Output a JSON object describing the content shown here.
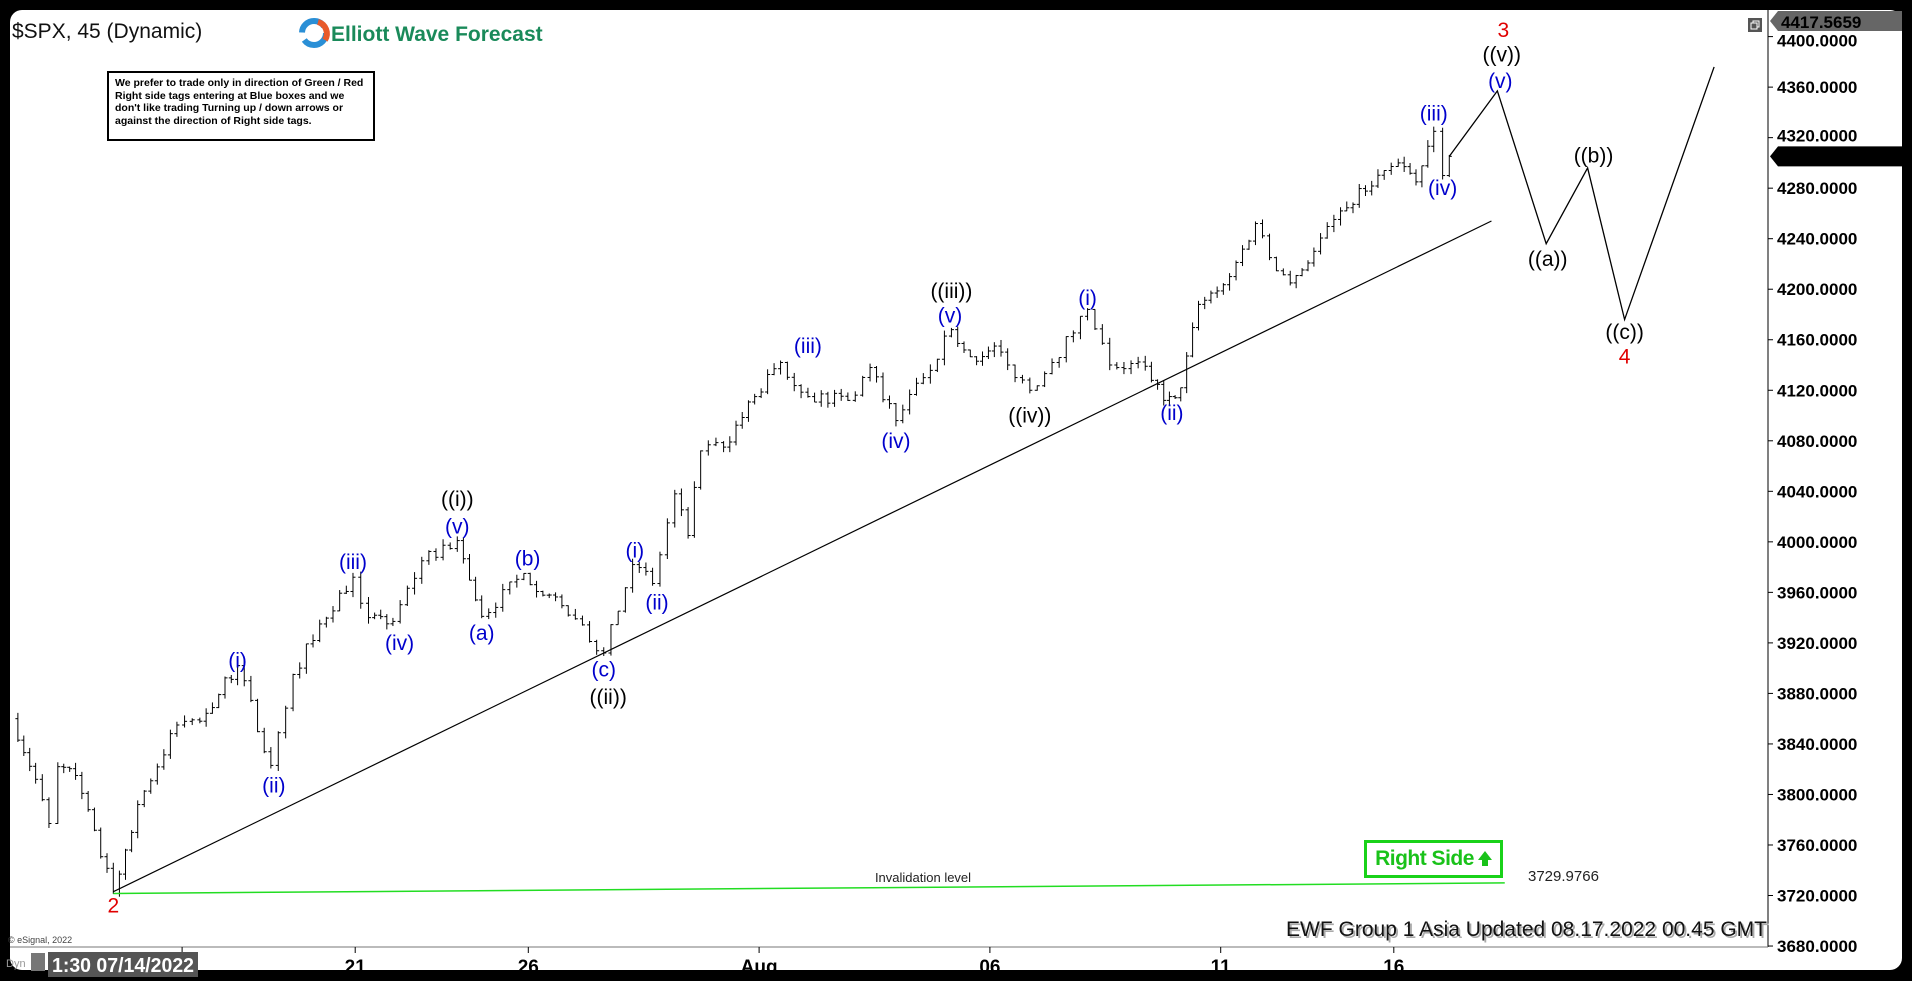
{
  "header": {
    "title": "$SPX, 45 (Dynamic)",
    "logo_text": "Elliott Wave Forecast",
    "note": "We prefer to trade only in direction of Green / Red Right side tags entering at Blue boxes and we don't like trading Turning up / down arrows or against the direction of Right side tags."
  },
  "footer": {
    "updated": "EWF Group 1 Asia Updated 08.17.2022 00.45 GMT",
    "copyright": "© eSignal, 2022",
    "dyn": "Dyn",
    "cursor_date": "1:30 07/14/2022"
  },
  "right_side_tag": {
    "label": "Right Side",
    "icon": "arrow-up-icon",
    "color": "#19c219"
  },
  "invalidation": {
    "label": "Invalidation level",
    "value_label": "3729.9766",
    "color": "#22dd22"
  },
  "colors": {
    "blue_labels": "#0000cc",
    "red_labels": "#e00000",
    "black_labels": "#000000"
  },
  "chart_data": {
    "type": "ohlc-bar",
    "symbol": "$SPX",
    "interval": "45 min",
    "ylim": [
      3680,
      4417.5659
    ],
    "y_ticks": [
      "4400.0000",
      "4360.0000",
      "4320.0000",
      "4280.0000",
      "4240.0000",
      "4200.0000",
      "4160.0000",
      "4120.0000",
      "4080.0000",
      "4040.0000",
      "4000.0000",
      "3960.0000",
      "3920.0000",
      "3880.0000",
      "3840.0000",
      "3800.0000",
      "3760.0000",
      "3720.0000",
      "3680.0000"
    ],
    "x_ticks": [
      {
        "label": "",
        "date": "07/18"
      },
      {
        "label": "21",
        "date": "07/21"
      },
      {
        "label": "26",
        "date": "07/26"
      },
      {
        "label": "Aug",
        "date": "08/01"
      },
      {
        "label": "06",
        "date": "08/05"
      },
      {
        "label": "11",
        "date": "08/11"
      },
      {
        "label": "16",
        "date": "08/16"
      }
    ],
    "price_tags": {
      "high": "4417.5659",
      "last": "4305.2000"
    },
    "price_path": [
      [
        "07/13 09:50",
        3860
      ],
      [
        "07/13 12:30",
        3812
      ],
      [
        "07/13 14:00",
        3777
      ],
      [
        "07/13 15:00",
        3822
      ],
      [
        "07/14 10:30",
        3815
      ],
      [
        "07/14 14:45",
        3721.6
      ],
      [
        "07/15 11:00",
        3792
      ],
      [
        "07/15 15:25",
        3855
      ],
      [
        "07/18 11:30",
        3858
      ],
      [
        "07/18 15:45",
        3902
      ],
      [
        "07/19 13:00",
        3823
      ],
      [
        "07/19 15:30",
        3895
      ],
      [
        "07/20 12:00",
        3935
      ],
      [
        "07/20 15:45",
        3972
      ],
      [
        "07/21 11:00",
        3940
      ],
      [
        "07/21 13:45",
        3937
      ],
      [
        "07/22 10:30",
        3985
      ],
      [
        "07/22 14:30",
        4001
      ],
      [
        "07/25 10:45",
        3941
      ],
      [
        "07/25 15:30",
        3975
      ],
      [
        "07/26 14:00",
        3942
      ],
      [
        "07/27 11:30",
        3912
      ],
      [
        "07/27 14:45",
        3982
      ],
      [
        "07/28 10:30",
        3967
      ],
      [
        "07/28 13:00",
        4038
      ],
      [
        "07/28 14:30",
        4005
      ],
      [
        "07/28 15:55",
        4072
      ],
      [
        "07/29 12:00",
        4075
      ],
      [
        "07/29 15:30",
        4115
      ],
      [
        "08/01 11:55",
        4142
      ],
      [
        "08/01 15:00",
        4115
      ],
      [
        "08/02 13:00",
        4112
      ],
      [
        "08/02 15:30",
        4138
      ],
      [
        "08/03 11:55",
        4096
      ],
      [
        "08/03 15:00",
        4130
      ],
      [
        "08/04 11:40",
        4168
      ],
      [
        "08/04 14:30",
        4143
      ],
      [
        "08/05 10:00",
        4155
      ],
      [
        "08/05 11:30",
        4140
      ],
      [
        "08/05 14:00",
        4120
      ],
      [
        "08/08 10:00",
        4142
      ],
      [
        "08/08 14:00",
        4184
      ],
      [
        "08/09 10:00",
        4140
      ],
      [
        "08/09 14:00",
        4139
      ],
      [
        "08/10 09:35",
        4112
      ],
      [
        "08/10 11:30",
        4122
      ],
      [
        "08/10 13:30",
        4188
      ],
      [
        "08/11 10:30",
        4210
      ],
      [
        "08/11 13:25",
        4252
      ],
      [
        "08/11 15:00",
        4225
      ],
      [
        "08/12 10:50",
        4205
      ],
      [
        "08/12 13:30",
        4230
      ],
      [
        "08/15 10:00",
        4262
      ],
      [
        "08/15 14:55",
        4294
      ],
      [
        "08/16 10:00",
        4300
      ],
      [
        "08/16 12:00",
        4285
      ],
      [
        "08/16 14:00",
        4325
      ],
      [
        "08/16 15:00",
        4290
      ],
      [
        "08/16 15:45",
        4305.2
      ]
    ],
    "projection_path": [
      [
        "08/16 15:45",
        4305.2
      ],
      [
        "08/17 14:40",
        4357
      ],
      [
        "08/18 13:40",
        4236
      ],
      [
        "08/19 11:50",
        4296
      ],
      [
        "08/22 09:30",
        4176
      ],
      [
        "08/23 13:05",
        4376
      ]
    ],
    "trendline": [
      [
        "07/14 14:45",
        3723
      ],
      [
        "08/17 14:00",
        4254
      ]
    ],
    "invalidation_line": [
      [
        "07/14 14:45",
        3721.6
      ],
      [
        "08/17 15:30",
        3729.9766
      ]
    ],
    "wave_labels": [
      {
        "text": "2",
        "color": "red",
        "date": "07/14 14:45",
        "price": 3712
      },
      {
        "text": "(i)",
        "color": "blue",
        "date": "07/18 15:45",
        "price": 3906
      },
      {
        "text": "(ii)",
        "color": "blue",
        "date": "07/19 13:20",
        "price": 3807
      },
      {
        "text": "(iii)",
        "color": "blue",
        "date": "07/20 15:45",
        "price": 3984
      },
      {
        "text": "(iv)",
        "color": "blue",
        "date": "07/21 14:30",
        "price": 3920
      },
      {
        "text": "(v)",
        "color": "blue",
        "date": "07/22 14:30",
        "price": 4012
      },
      {
        "text": "((i))",
        "color": "black",
        "date": "07/22 14:30",
        "price": 4034
      },
      {
        "text": "(a)",
        "color": "blue",
        "date": "07/25 10:45",
        "price": 3928
      },
      {
        "text": "(b)",
        "color": "blue",
        "date": "07/25 15:55",
        "price": 3987
      },
      {
        "text": "(c)",
        "color": "blue",
        "date": "07/27 11:30",
        "price": 3899
      },
      {
        "text": "((ii))",
        "color": "black",
        "date": "07/27 12:00",
        "price": 3877
      },
      {
        "text": "(i)",
        "color": "blue",
        "date": "07/27 15:00",
        "price": 3993
      },
      {
        "text": "(ii)",
        "color": "blue",
        "date": "07/28 11:00",
        "price": 3952
      },
      {
        "text": "(iii)",
        "color": "blue",
        "date": "08/01 15:00",
        "price": 4155
      },
      {
        "text": "(iv)",
        "color": "blue",
        "date": "08/03 11:55",
        "price": 4080
      },
      {
        "text": "(v)",
        "color": "blue",
        "date": "08/04 11:30",
        "price": 4179
      },
      {
        "text": "((iii))",
        "color": "black",
        "date": "08/04 11:40",
        "price": 4197
      },
      {
        "text": "((iv))",
        "color": "black",
        "date": "08/05 14:00",
        "price": 4100
      },
      {
        "text": "(i)",
        "color": "blue",
        "date": "08/08 14:00",
        "price": 4193
      },
      {
        "text": "(ii)",
        "color": "blue",
        "date": "08/10 10:30",
        "price": 4102
      },
      {
        "text": "(iii)",
        "color": "blue",
        "date": "08/16 14:00",
        "price": 4339
      },
      {
        "text": "(iv)",
        "color": "blue",
        "date": "08/16 15:00",
        "price": 4280
      },
      {
        "text": "(v)",
        "color": "blue",
        "date": "08/17 15:00",
        "price": 4365
      },
      {
        "text": "((v))",
        "color": "black",
        "date": "08/17 15:10",
        "price": 4386
      },
      {
        "text": "3",
        "color": "red",
        "date": "08/17 15:20",
        "price": 4402
      },
      {
        "text": "((a))",
        "color": "black",
        "date": "08/18 13:50",
        "price": 4224
      },
      {
        "text": "((b))",
        "color": "black",
        "date": "08/19 12:30",
        "price": 4306
      },
      {
        "text": "((c))",
        "color": "black",
        "date": "08/22 09:30",
        "price": 4166
      },
      {
        "text": "4",
        "color": "red",
        "date": "08/22 09:30",
        "price": 4150
      }
    ]
  }
}
